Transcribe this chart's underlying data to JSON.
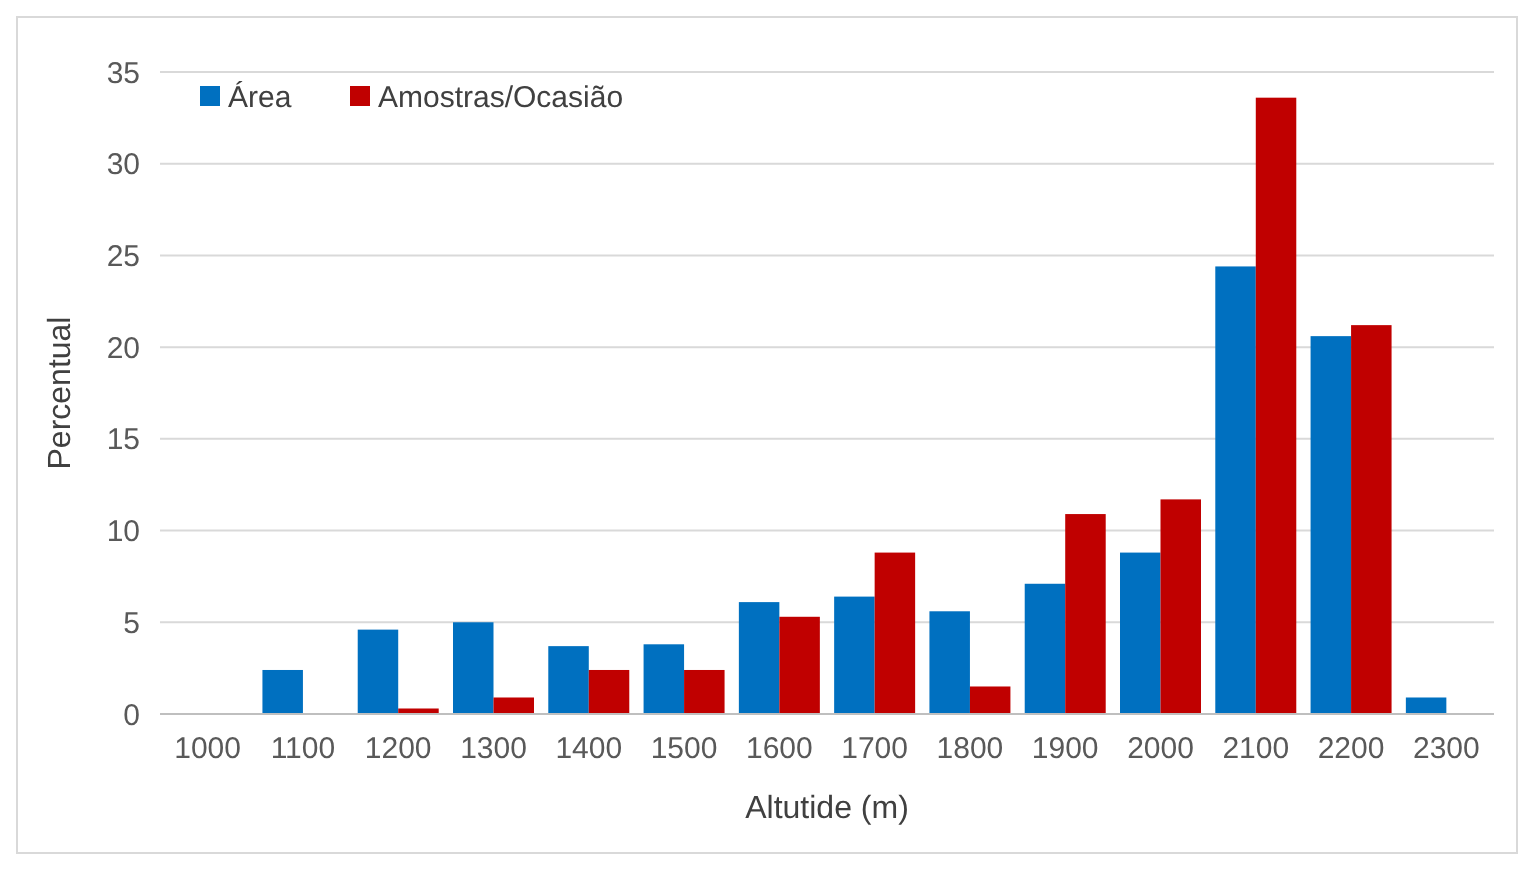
{
  "chart_data": {
    "type": "bar",
    "xlabel": "Altutide (m)",
    "ylabel": "Percentual",
    "categories": [
      "1000",
      "1100",
      "1200",
      "1300",
      "1400",
      "1500",
      "1600",
      "1700",
      "1800",
      "1900",
      "2000",
      "2100",
      "2200",
      "2300"
    ],
    "series": [
      {
        "name": "Área",
        "color": "#0070c0",
        "values": [
          0,
          2.4,
          4.6,
          5.0,
          3.7,
          3.8,
          6.1,
          6.4,
          5.6,
          7.1,
          8.8,
          24.4,
          20.6,
          0.9
        ]
      },
      {
        "name": "Amostras/Ocasião",
        "color": "#c00000",
        "values": [
          0,
          0,
          0.3,
          0.9,
          2.4,
          2.4,
          5.3,
          8.8,
          1.5,
          10.9,
          11.7,
          33.6,
          21.2,
          0
        ]
      }
    ],
    "ylim": [
      0,
      35
    ],
    "yticks": [
      0,
      5,
      10,
      15,
      20,
      25,
      30,
      35
    ],
    "grid": "y",
    "legend": "top left"
  }
}
